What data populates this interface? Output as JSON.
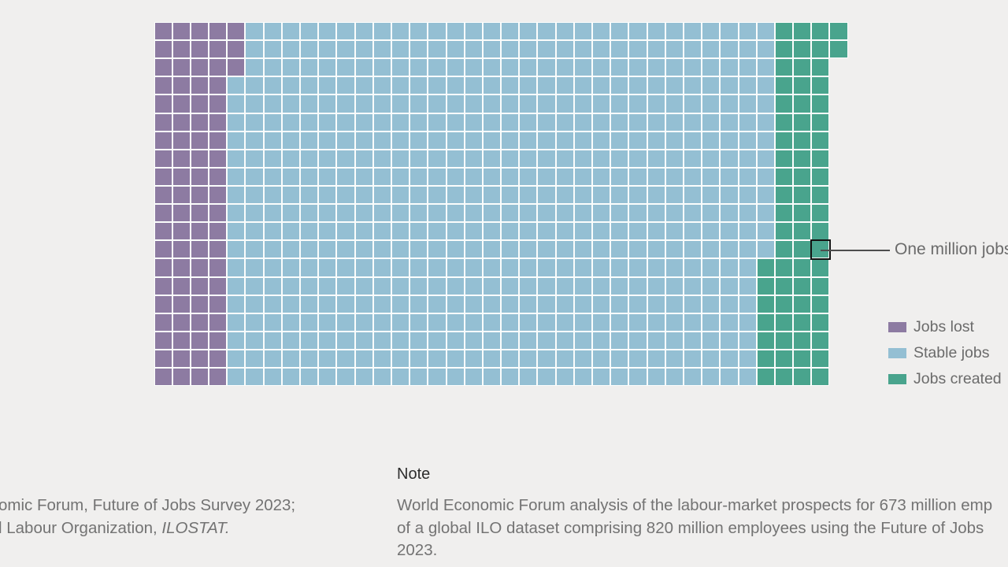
{
  "callout": {
    "label": "One million jobs"
  },
  "legend": {
    "position": "right",
    "items": [
      {
        "key": "lost",
        "label": "Jobs lost",
        "color": "#8d7ba2"
      },
      {
        "key": "stable",
        "label": "Stable jobs",
        "color": "#94bfd3"
      },
      {
        "key": "created",
        "label": "Jobs created",
        "color": "#49a48d"
      }
    ]
  },
  "note": {
    "heading": "Note",
    "line1": "World Economic Forum analysis of the labour-market prospects for 673 million emp",
    "line2": "of a global ILO dataset comprising 820 million employees using the Future of Jobs",
    "line3": "2023."
  },
  "source": {
    "line1": "omic Forum, Future of Jobs Survey 2023;",
    "line2_prefix": "l Labour Organization, ",
    "line2_italic": "ILOSTAT."
  },
  "chart_data": {
    "type": "waffle",
    "square_value": "One square = one million jobs",
    "categories": [
      "Jobs lost",
      "Stable jobs",
      "Jobs created"
    ],
    "totals": {
      "jobs_lost_squares": 83,
      "stable_jobs_squares": 590,
      "jobs_created_squares": 69
    },
    "colors": {
      "lost": "#8d7ba2",
      "stable": "#94bfd3",
      "created": "#49a48d"
    },
    "grid": {
      "rows_count": 20,
      "main_columns": 37,
      "extra_column_rows": [
        1,
        2
      ]
    },
    "rows": [
      {
        "lost": 5,
        "stable": 29,
        "created": 4
      },
      {
        "lost": 5,
        "stable": 29,
        "created": 4
      },
      {
        "lost": 5,
        "stable": 29,
        "created": 3
      },
      {
        "lost": 4,
        "stable": 30,
        "created": 3
      },
      {
        "lost": 4,
        "stable": 30,
        "created": 3
      },
      {
        "lost": 4,
        "stable": 30,
        "created": 3
      },
      {
        "lost": 4,
        "stable": 30,
        "created": 3
      },
      {
        "lost": 4,
        "stable": 30,
        "created": 3
      },
      {
        "lost": 4,
        "stable": 30,
        "created": 3
      },
      {
        "lost": 4,
        "stable": 30,
        "created": 3
      },
      {
        "lost": 4,
        "stable": 30,
        "created": 3
      },
      {
        "lost": 4,
        "stable": 30,
        "created": 3
      },
      {
        "lost": 4,
        "stable": 30,
        "created": 3
      },
      {
        "lost": 4,
        "stable": 29,
        "created": 4
      },
      {
        "lost": 4,
        "stable": 29,
        "created": 4
      },
      {
        "lost": 4,
        "stable": 29,
        "created": 4
      },
      {
        "lost": 4,
        "stable": 29,
        "created": 4
      },
      {
        "lost": 4,
        "stable": 29,
        "created": 4
      },
      {
        "lost": 4,
        "stable": 29,
        "created": 4
      },
      {
        "lost": 4,
        "stable": 29,
        "created": 4
      }
    ],
    "highlight": {
      "row": 13,
      "col": 37,
      "category": "created",
      "label": "One million jobs"
    },
    "legend_entries": [
      "Jobs lost",
      "Stable jobs",
      "Jobs created"
    ]
  },
  "style_colors": {
    "background": "#f0efee",
    "cell_gap": "#fbfdfc",
    "highlight_border": "#141414",
    "callout_line": "#4e4e4e",
    "text_gray": "#6b6b6b",
    "note_heading": "#2d2d2d",
    "body_text": "#737373"
  }
}
